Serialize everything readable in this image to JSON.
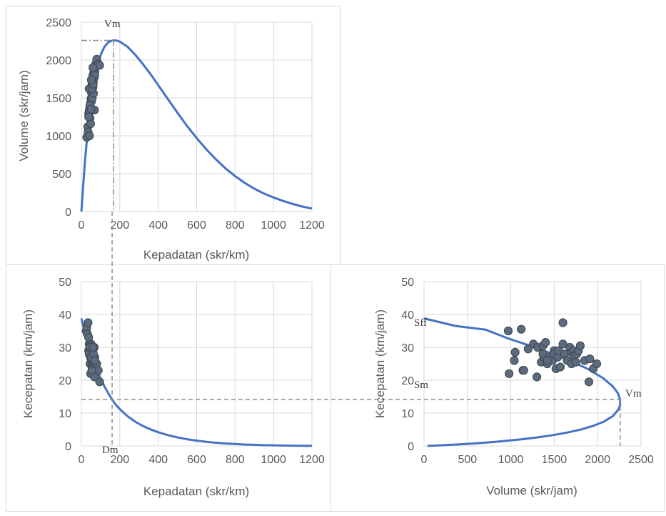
{
  "chart_data": [
    {
      "id": "tl",
      "type": "scatter",
      "xlabel": "Kepadatan (skr/km)",
      "ylabel": "Volume (skr/jam)",
      "xlim": [
        0,
        1200
      ],
      "ylim": [
        0,
        2500
      ],
      "xticks": [
        "0",
        "200",
        "400",
        "600",
        "800",
        "1000",
        "1200"
      ],
      "yticks": [
        "0",
        "500",
        "1000",
        "1500",
        "2000",
        "2500"
      ],
      "grid": true,
      "model_curve": {
        "x": [
          0,
          10,
          20,
          30,
          40,
          60,
          80,
          100,
          120,
          140,
          160,
          180,
          200,
          240,
          280,
          320,
          360,
          400,
          450,
          500,
          550,
          600,
          650,
          700,
          750,
          800,
          850,
          900,
          950,
          1000,
          1050,
          1100,
          1150,
          1200
        ],
        "y": [
          0,
          365,
          707,
          979,
          1220,
          1607,
          1882,
          2065,
          2175,
          2235,
          2258,
          2259,
          2243,
          2175,
          2071,
          1947,
          1813,
          1668,
          1486,
          1305,
          1130,
          970,
          822,
          690,
          570,
          468,
          378,
          302,
          238,
          186,
          140,
          100,
          66,
          40
        ]
      },
      "points": {
        "x": [
          28,
          33,
          35,
          38,
          40,
          42,
          44,
          45,
          47,
          48,
          50,
          50,
          52,
          53,
          55,
          55,
          57,
          58,
          60,
          60,
          62,
          63,
          65,
          67,
          68,
          70,
          72,
          75,
          80,
          88,
          95,
          40,
          45,
          50,
          55,
          38,
          62,
          70,
          60,
          52
        ],
        "y": [
          980,
          1120,
          1050,
          1290,
          1330,
          1000,
          1380,
          1230,
          1430,
          1160,
          1490,
          1600,
          1450,
          1560,
          1660,
          1700,
          1500,
          1750,
          1640,
          1800,
          1720,
          1560,
          1850,
          1770,
          1340,
          1850,
          1900,
          1950,
          2010,
          1950,
          1930,
          1620,
          1400,
          1350,
          1620,
          1250,
          1680,
          1800,
          1900,
          1740
        ]
      },
      "reference": {
        "x": 168,
        "y": 2260
      },
      "annotations": [
        "Vm"
      ]
    },
    {
      "id": "bl",
      "type": "scatter",
      "xlabel": "Kepadatan (skr/km)",
      "ylabel": "Kecepatan (km/jam)",
      "xlim": [
        0,
        1200
      ],
      "ylim": [
        0,
        50
      ],
      "xticks": [
        "0",
        "200",
        "400",
        "600",
        "800",
        "1000",
        "1200"
      ],
      "yticks": [
        "0",
        "10",
        "20",
        "30",
        "40",
        "50"
      ],
      "grid": true,
      "model_curve": {
        "x": [
          0,
          10,
          20,
          30,
          40,
          60,
          80,
          100,
          120,
          140,
          160,
          180,
          200,
          240,
          280,
          320,
          360,
          400,
          450,
          500,
          550,
          600,
          650,
          700,
          750,
          800,
          850,
          900,
          950,
          1000,
          1050,
          1100,
          1150,
          1200
        ],
        "y": [
          38.8,
          36.5,
          35.4,
          32.6,
          30.5,
          26.8,
          23.5,
          20.6,
          18.1,
          16.0,
          14.1,
          12.5,
          11.2,
          9.06,
          7.39,
          6.08,
          5.04,
          4.17,
          3.3,
          2.61,
          2.05,
          1.62,
          1.26,
          0.98,
          0.76,
          0.59,
          0.44,
          0.34,
          0.25,
          0.19,
          0.13,
          0.09,
          0.06,
          0.03
        ]
      },
      "points": {
        "x": [
          25,
          28,
          32,
          35,
          38,
          40,
          42,
          44,
          45,
          47,
          48,
          50,
          50,
          52,
          53,
          55,
          55,
          57,
          58,
          60,
          60,
          62,
          63,
          65,
          67,
          68,
          70,
          72,
          75,
          80,
          88,
          95,
          40,
          45,
          50,
          55,
          38,
          62,
          70,
          60
        ],
        "y": [
          35,
          36,
          34,
          37.5,
          29,
          31,
          28,
          30,
          25,
          27,
          22,
          29.5,
          31,
          26,
          28,
          30.5,
          24,
          27.5,
          26,
          29,
          24,
          25,
          27,
          26,
          30,
          21,
          27,
          25,
          24,
          25,
          23,
          19.5,
          28,
          30,
          27,
          23,
          33,
          28,
          26,
          30
        ]
      },
      "reference": {
        "x": 160,
        "y": 14.1
      },
      "annotations": [
        "Dm"
      ]
    },
    {
      "id": "br",
      "type": "scatter",
      "xlabel": "Volume (skr/jam)",
      "ylabel": "Kecepatan (km/jam)",
      "xlim": [
        0,
        2500
      ],
      "ylim": [
        0,
        50
      ],
      "xticks": [
        "0",
        "500",
        "1000",
        "1500",
        "2000",
        "2500"
      ],
      "yticks": [
        "0",
        "10",
        "20",
        "30",
        "40",
        "50"
      ],
      "grid": true,
      "model_curve": {
        "x": [
          0,
          365,
          707,
          979,
          1220,
          1607,
          1882,
          2065,
          2175,
          2235,
          2258,
          2259,
          2243,
          2175,
          2071,
          1947,
          1813,
          1668,
          1486,
          1305,
          1130,
          970,
          822,
          690,
          570,
          468,
          378,
          302,
          238,
          186,
          140,
          100,
          66,
          40
        ],
        "y": [
          38.8,
          36.5,
          35.4,
          32.6,
          30.5,
          26.8,
          23.5,
          20.6,
          18.1,
          16.0,
          14.1,
          12.5,
          11.2,
          9.06,
          7.39,
          6.08,
          5.04,
          4.17,
          3.3,
          2.61,
          2.05,
          1.62,
          1.26,
          0.98,
          0.76,
          0.59,
          0.44,
          0.34,
          0.25,
          0.19,
          0.13,
          0.09,
          0.06,
          0.03
        ]
      },
      "points": {
        "x": [
          970,
          980,
          1040,
          1050,
          1120,
          1140,
          1150,
          1200,
          1260,
          1300,
          1310,
          1350,
          1370,
          1380,
          1400,
          1420,
          1450,
          1480,
          1500,
          1500,
          1520,
          1540,
          1550,
          1570,
          1600,
          1600,
          1620,
          1650,
          1680,
          1700,
          1700,
          1720,
          1730,
          1750,
          1760,
          1780,
          1800,
          1850,
          1900,
          1910,
          1950,
          1990,
          1370,
          1420
        ],
        "y": [
          35,
          22,
          26,
          28.5,
          35.5,
          23,
          23,
          29.5,
          31,
          21,
          30,
          25.5,
          30.5,
          27,
          31.5,
          25,
          27,
          26,
          29,
          28,
          23.5,
          27,
          29,
          24,
          37.5,
          31,
          28,
          26,
          30,
          25,
          28.5,
          29,
          27.5,
          25.5,
          28,
          29,
          30.5,
          26,
          19.5,
          26.5,
          23.5,
          25,
          28,
          26
        ]
      },
      "reference": {
        "x": 2260,
        "y": 14.1
      },
      "annotations": [
        "Sff",
        "Sm",
        "Vm"
      ]
    }
  ]
}
